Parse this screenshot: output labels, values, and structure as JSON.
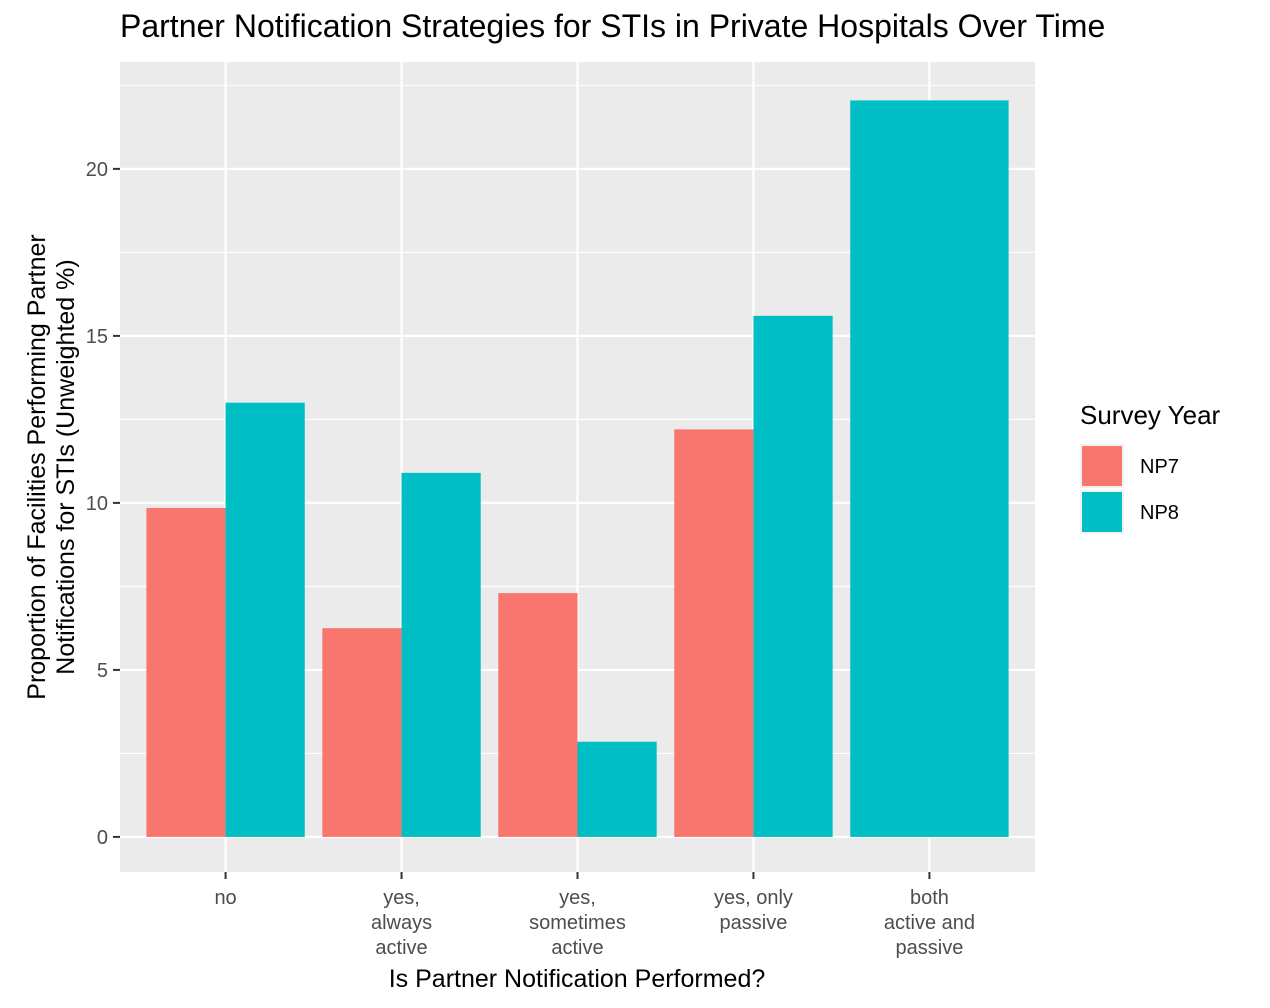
{
  "chart_data": {
    "type": "bar",
    "title": "Partner Notification Strategies for STIs in Private Hospitals Over Time",
    "xlabel": "Is Partner Notification Performed?",
    "ylabel_lines": [
      "Proportion of Facilities Performing Partner",
      "Notifications for STIs (Unweighted %)"
    ],
    "categories": [
      [
        "no"
      ],
      [
        "yes,",
        "always",
        "active"
      ],
      [
        "yes,",
        "sometimes",
        "active"
      ],
      [
        "yes, only",
        "passive"
      ],
      [
        "both",
        "active and",
        "passive"
      ]
    ],
    "series": [
      {
        "name": "NP7",
        "color": "#F8766D",
        "values": [
          9.85,
          6.25,
          7.3,
          12.2,
          null
        ]
      },
      {
        "name": "NP8",
        "color": "#00BFC4",
        "values": [
          13.0,
          10.9,
          2.85,
          15.6,
          22.05
        ]
      }
    ],
    "ylim": [
      -1.05,
      23.2
    ],
    "yticks": [
      0,
      5,
      10,
      15,
      20
    ],
    "grid": true,
    "panel_background": "#EBEBEB",
    "legend": {
      "title": "Survey Year",
      "position": "right"
    }
  }
}
